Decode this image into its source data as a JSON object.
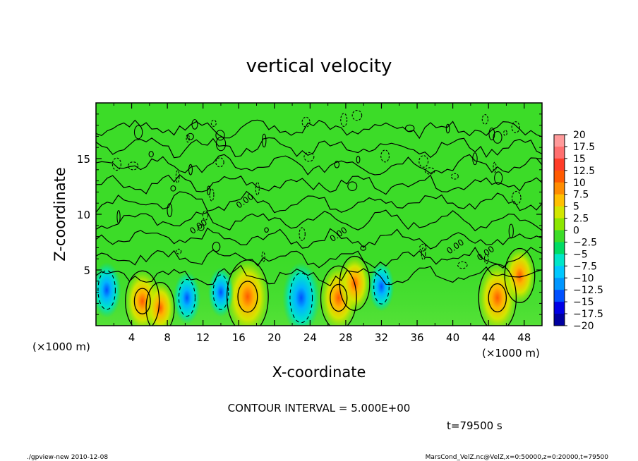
{
  "chart_data": {
    "type": "heatmap",
    "title": "vertical velocity",
    "xlabel": "X-coordinate",
    "ylabel": "Z-coordinate",
    "x_unit": "(×1000 m)",
    "y_unit": "(×1000 m)",
    "xlim": [
      0,
      50
    ],
    "ylim": [
      0,
      20
    ],
    "x_ticks": [
      "4",
      "8",
      "12",
      "16",
      "20",
      "24",
      "28",
      "32",
      "36",
      "40",
      "44",
      "48"
    ],
    "y_ticks": [
      "5",
      "10",
      "15"
    ],
    "colorbar": {
      "min": -20,
      "max": 20,
      "labels": [
        "20",
        "17.5",
        "15",
        "12.5",
        "10",
        "7.5",
        "5",
        "2.5",
        "0",
        "−2.5",
        "−5",
        "−7.5",
        "−10",
        "−12.5",
        "−15",
        "−17.5",
        "−20"
      ],
      "colors": [
        "#ff9a9a",
        "#ff6f6f",
        "#ff3c28",
        "#ff5a00",
        "#ff8c00",
        "#ffc000",
        "#d2e600",
        "#8ce600",
        "#3cdc28",
        "#00dc64",
        "#00e6c8",
        "#00c8ff",
        "#0096ff",
        "#0050ff",
        "#0000e6",
        "#0000a0",
        "#6e00c8"
      ]
    },
    "updrafts": [
      {
        "x": 5.2,
        "z": 2.2,
        "w": 8
      },
      {
        "x": 7.2,
        "z": 1.6,
        "w": 5
      },
      {
        "x": 17.0,
        "z": 2.6,
        "w": 12
      },
      {
        "x": 27.2,
        "z": 2.5,
        "w": 9
      },
      {
        "x": 29.0,
        "z": 3.8,
        "w": 6
      },
      {
        "x": 45.0,
        "z": 2.5,
        "w": 10
      },
      {
        "x": 47.5,
        "z": 4.5,
        "w": 6
      }
    ],
    "downdrafts": [
      {
        "x": 1.2,
        "z": 3.2,
        "w": -7
      },
      {
        "x": 10.2,
        "z": 2.5,
        "w": -6
      },
      {
        "x": 14.0,
        "z": 3.0,
        "w": -5
      },
      {
        "x": 23.0,
        "z": 2.5,
        "w": -12
      },
      {
        "x": 32.0,
        "z": 3.5,
        "w": -5
      }
    ],
    "contour_label": "0.00",
    "contour_interval": "CONTOUR INTERVAL = 5.000E+00",
    "time": "t=79500 s"
  },
  "footer": {
    "left": "./gpview-new   2010-12-08",
    "right": "MarsCond_VelZ.nc@VelZ,x=0:50000,z=0:20000,t=79500"
  }
}
